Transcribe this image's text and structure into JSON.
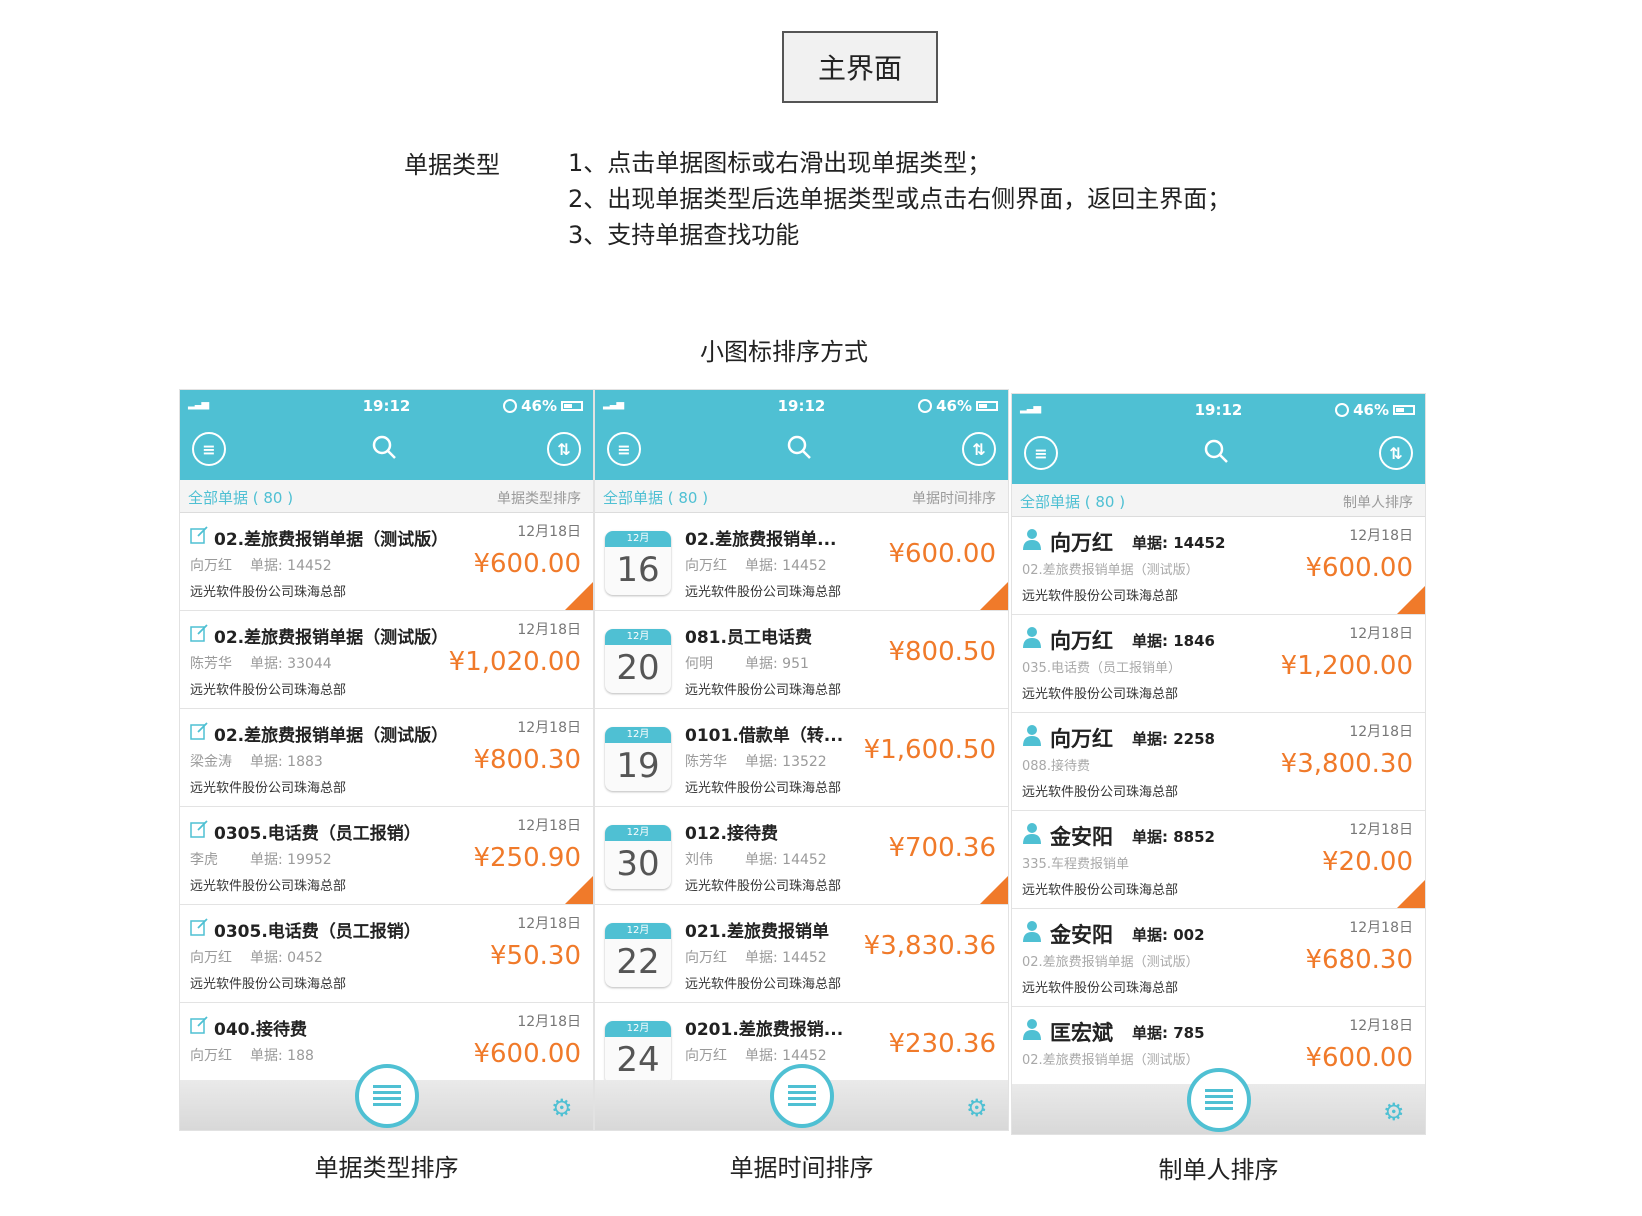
{
  "header": {
    "title": "主界面"
  },
  "description": {
    "label": "单据类型",
    "lines": [
      "1、点击单据图标或右滑出现单据类型；",
      "2、出现单据类型后选单据类型或点击右侧界面，返回主界面；",
      "3、支持单据查找功能"
    ]
  },
  "section_title": "小图标排序方式",
  "colors": {
    "accent": "#4fc0d3",
    "amount": "#f07a2a"
  },
  "phones": [
    {
      "caption": "单据类型排序",
      "status": {
        "time": "19:12",
        "battery": "46%"
      },
      "filter": {
        "left": "全部单据 ( 80 )",
        "right": "单据类型排序"
      },
      "rows": [
        {
          "title": "02.差旅费报销单据（测试版）",
          "who": "向万红",
          "no": "单据: 14452",
          "company": "远光软件股份公司珠海总部",
          "date": "12月18日",
          "amount": "¥600.00",
          "flag": true
        },
        {
          "title": "02.差旅费报销单据（测试版）",
          "who": "陈芳华",
          "no": "单据: 33044",
          "company": "远光软件股份公司珠海总部",
          "date": "12月18日",
          "amount": "¥1,020.00",
          "flag": false
        },
        {
          "title": "02.差旅费报销单据（测试版）",
          "who": "梁金涛",
          "no": "单据: 1883",
          "company": "远光软件股份公司珠海总部",
          "date": "12月18日",
          "amount": "¥800.30",
          "flag": false
        },
        {
          "title": "0305.电话费（员工报销）",
          "who": "李虎",
          "no": "单据: 19952",
          "company": "远光软件股份公司珠海总部",
          "date": "12月18日",
          "amount": "¥250.90",
          "flag": true
        },
        {
          "title": "0305.电话费（员工报销）",
          "who": "向万红",
          "no": "单据: 0452",
          "company": "远光软件股份公司珠海总部",
          "date": "12月18日",
          "amount": "¥50.30",
          "flag": false
        },
        {
          "title": "040.接待费",
          "who": "向万红",
          "no": "单据: 188",
          "company": "",
          "date": "12月18日",
          "amount": "¥600.00",
          "flag": false
        }
      ]
    },
    {
      "caption": "单据时间排序",
      "status": {
        "time": "19:12",
        "battery": "46%"
      },
      "filter": {
        "left": "全部单据 ( 80 )",
        "right": "单据时间排序"
      },
      "rows": [
        {
          "month": "12月",
          "day": "16",
          "title": "02.差旅费报销单...",
          "who": "向万红",
          "no": "单据: 14452",
          "company": "远光软件股份公司珠海总部",
          "amount": "¥600.00",
          "flag": true
        },
        {
          "month": "12月",
          "day": "20",
          "title": "081.员工电话费",
          "who": "何明",
          "no": "单据: 951",
          "company": "远光软件股份公司珠海总部",
          "amount": "¥800.50",
          "flag": false
        },
        {
          "month": "12月",
          "day": "19",
          "title": "0101.借款单（转...",
          "who": "陈芳华",
          "no": "单据: 13522",
          "company": "远光软件股份公司珠海总部",
          "amount": "¥1,600.50",
          "flag": false
        },
        {
          "month": "12月",
          "day": "30",
          "title": "012.接待费",
          "who": "刘伟",
          "no": "单据: 14452",
          "company": "远光软件股份公司珠海总部",
          "amount": "¥700.36",
          "flag": true
        },
        {
          "month": "12月",
          "day": "22",
          "title": "021.差旅费报销单",
          "who": "向万红",
          "no": "单据: 14452",
          "company": "远光软件股份公司珠海总部",
          "amount": "¥3,830.36",
          "flag": false
        },
        {
          "month": "12月",
          "day": "24",
          "title": "0201.差旅费报销...",
          "who": "向万红",
          "no": "单据: 14452",
          "company": "",
          "amount": "¥230.36",
          "flag": false
        }
      ]
    },
    {
      "caption": "制单人排序",
      "status": {
        "time": "19:12",
        "battery": "46%"
      },
      "filter": {
        "left": "全部单据 ( 80 )",
        "right": "制单人排序"
      },
      "rows": [
        {
          "name": "向万红",
          "no": "单据: 14452",
          "type": "02.差旅费报销单据（测试版）",
          "company": "远光软件股份公司珠海总部",
          "date": "12月18日",
          "amount": "¥600.00",
          "flag": true
        },
        {
          "name": "向万红",
          "no": "单据: 1846",
          "type": "035.电话费（员工报销单）",
          "company": "远光软件股份公司珠海总部",
          "date": "12月18日",
          "amount": "¥1,200.00",
          "flag": false
        },
        {
          "name": "向万红",
          "no": "单据: 2258",
          "type": "088.接待费",
          "company": "远光软件股份公司珠海总部",
          "date": "12月18日",
          "amount": "¥3,800.30",
          "flag": false
        },
        {
          "name": "金安阳",
          "no": "单据: 8852",
          "type": "335.车程费报销单",
          "company": "远光软件股份公司珠海总部",
          "date": "12月18日",
          "amount": "¥20.00",
          "flag": true
        },
        {
          "name": "金安阳",
          "no": "单据: 002",
          "type": "02.差旅费报销单据（测试版）",
          "company": "远光软件股份公司珠海总部",
          "date": "12月18日",
          "amount": "¥680.30",
          "flag": false
        },
        {
          "name": "匡宏斌",
          "no": "单据: 785",
          "type": "02.差旅费报销单据（测试版）",
          "company": "",
          "date": "12月18日",
          "amount": "¥600.00",
          "flag": false
        }
      ]
    }
  ]
}
